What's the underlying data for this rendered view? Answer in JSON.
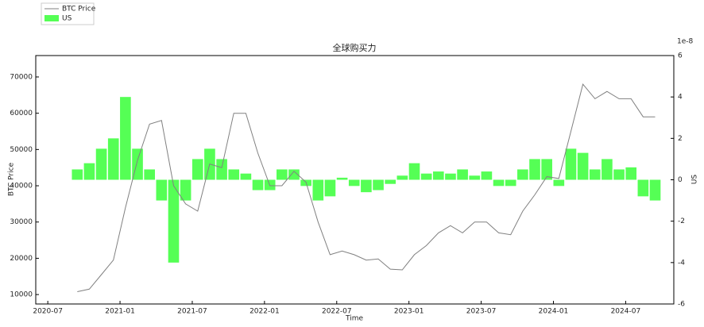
{
  "chart_data": {
    "type": "bar-line",
    "title": "全球购买力",
    "x_label": "Time",
    "y_label": "BTC Price",
    "y2_label": "US",
    "y2_scale_label": "1e-8",
    "x": [
      "2020-09",
      "2020-10",
      "2020-11",
      "2020-12",
      "2021-01",
      "2021-02",
      "2021-03",
      "2021-04",
      "2021-05",
      "2021-06",
      "2021-07",
      "2021-08",
      "2021-09",
      "2021-10",
      "2021-11",
      "2021-12",
      "2022-01",
      "2022-02",
      "2022-03",
      "2022-04",
      "2022-05",
      "2022-06",
      "2022-07",
      "2022-08",
      "2022-09",
      "2022-10",
      "2022-11",
      "2022-12",
      "2023-01",
      "2023-02",
      "2023-03",
      "2023-04",
      "2023-05",
      "2023-06",
      "2023-07",
      "2023-08",
      "2023-09",
      "2023-10",
      "2023-11",
      "2023-12",
      "2024-01",
      "2024-02",
      "2024-03",
      "2024-04",
      "2024-05",
      "2024-06",
      "2024-07",
      "2024-08",
      "2024-09"
    ],
    "series": [
      {
        "name": "BTC Price",
        "kind": "line",
        "color": "#808080",
        "values": [
          10800,
          11500,
          15500,
          19500,
          34000,
          47000,
          57000,
          58000,
          40000,
          35000,
          33000,
          46000,
          45000,
          60000,
          60000,
          49000,
          40000,
          40000,
          44000,
          41000,
          30000,
          21000,
          22000,
          21000,
          19500,
          19800,
          17000,
          16800,
          21000,
          23500,
          27000,
          29000,
          27000,
          30000,
          30000,
          27000,
          26500,
          33000,
          37500,
          42500,
          42000,
          55000,
          68000,
          64000,
          66000,
          64000,
          64000,
          59000,
          59000
        ]
      },
      {
        "name": "US",
        "kind": "bar",
        "axis": "y2",
        "color": "#55ff55",
        "values": [
          0.5,
          0.8,
          1.5,
          2.0,
          4.0,
          1.5,
          0.5,
          -1.0,
          -4.0,
          -1.0,
          1.0,
          1.5,
          1.0,
          0.5,
          0.3,
          -0.5,
          -0.5,
          0.5,
          0.5,
          -0.3,
          -1.0,
          -0.8,
          0.1,
          -0.3,
          -0.6,
          -0.5,
          -0.2,
          0.2,
          0.8,
          0.3,
          0.4,
          0.3,
          0.5,
          0.2,
          0.4,
          -0.3,
          -0.3,
          0.5,
          1.0,
          1.0,
          -0.3,
          1.5,
          1.3,
          0.5,
          1.0,
          0.5,
          0.6,
          -0.8,
          -1.0
        ]
      }
    ],
    "xlim": [
      "2020-06",
      "2024-11"
    ],
    "xticks": [
      "2020-07",
      "2021-01",
      "2021-07",
      "2022-01",
      "2022-07",
      "2023-01",
      "2023-07",
      "2024-01",
      "2024-07"
    ],
    "ylim": [
      7400,
      75900
    ],
    "yticks": [
      10000,
      20000,
      30000,
      40000,
      50000,
      60000,
      70000
    ],
    "y2lim": [
      -6,
      6
    ],
    "y2ticks": [
      -6,
      -4,
      -2,
      0,
      2,
      4,
      6
    ]
  }
}
